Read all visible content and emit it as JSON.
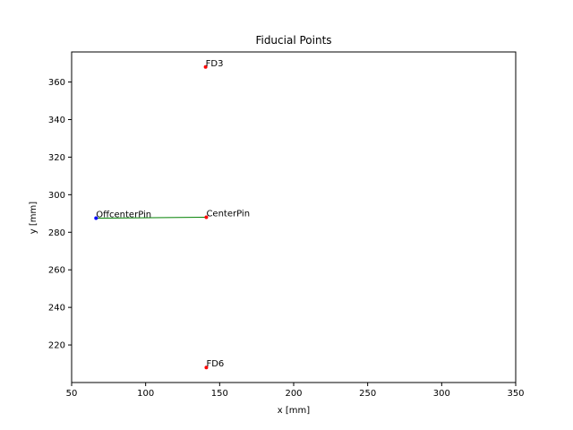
{
  "chart_data": {
    "type": "scatter",
    "title": "Fiducial Points",
    "xlabel": "x [mm]",
    "ylabel": "y [mm]",
    "xlim": [
      50,
      350
    ],
    "ylim": [
      200,
      376
    ],
    "xticks": [
      50,
      100,
      150,
      200,
      250,
      300,
      350
    ],
    "yticks": [
      220,
      240,
      260,
      280,
      300,
      320,
      340,
      360
    ],
    "grid": false,
    "points": [
      {
        "label": "FD3",
        "x": 140.5,
        "y": 368.0,
        "color": "#ff0000"
      },
      {
        "label": "CenterPin",
        "x": 141.0,
        "y": 288.0,
        "color": "#ff0000"
      },
      {
        "label": "OffcenterPin",
        "x": 66.5,
        "y": 287.5,
        "color": "#0000ff"
      },
      {
        "label": "FD6",
        "x": 141.0,
        "y": 208.0,
        "color": "#ff0000"
      }
    ],
    "lines": [
      {
        "from": "OffcenterPin",
        "to": "CenterPin",
        "color": "#008000"
      }
    ]
  }
}
